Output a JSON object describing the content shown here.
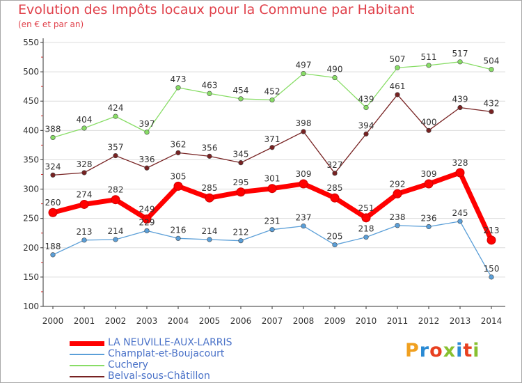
{
  "title": "Evolution des Impôts locaux pour la Commune par Habitant",
  "subtitle": "(en € et par an)",
  "logo": "Proxiti",
  "chart_data": {
    "type": "line",
    "title": "Evolution des Impôts locaux pour la Commune par Habitant",
    "subtitle": "(en € et par an)",
    "x": [
      "2000",
      "2001",
      "2002",
      "2003",
      "2004",
      "2005",
      "2006",
      "2007",
      "2008",
      "2009",
      "2010",
      "2011",
      "2012",
      "2013",
      "2014"
    ],
    "ylim": [
      100,
      550
    ],
    "yticks": [
      100,
      150,
      200,
      250,
      300,
      350,
      400,
      450,
      500,
      550
    ],
    "grid": "horizontal",
    "legend_position": "bottom-left",
    "series": [
      {
        "name": "LA NEUVILLE-AUX-LARRIS",
        "color": "#ff0000",
        "values": [
          260,
          274,
          282,
          249,
          305,
          285,
          295,
          301,
          309,
          285,
          251,
          292,
          309,
          328,
          213
        ]
      },
      {
        "name": "Champlat-et-Boujacourt",
        "color": "#5b9fd8",
        "values": [
          188,
          213,
          214,
          229,
          216,
          214,
          212,
          231,
          237,
          205,
          218,
          238,
          236,
          245,
          150
        ]
      },
      {
        "name": "Cuchery",
        "color": "#88dd66",
        "values": [
          388,
          404,
          424,
          397,
          473,
          463,
          454,
          452,
          497,
          490,
          439,
          507,
          511,
          517,
          504
        ]
      },
      {
        "name": "Belval-sous-Châtillon",
        "color": "#772222",
        "values": [
          324,
          328,
          357,
          336,
          362,
          356,
          345,
          371,
          398,
          327,
          394,
          461,
          400,
          439,
          432
        ]
      }
    ]
  }
}
